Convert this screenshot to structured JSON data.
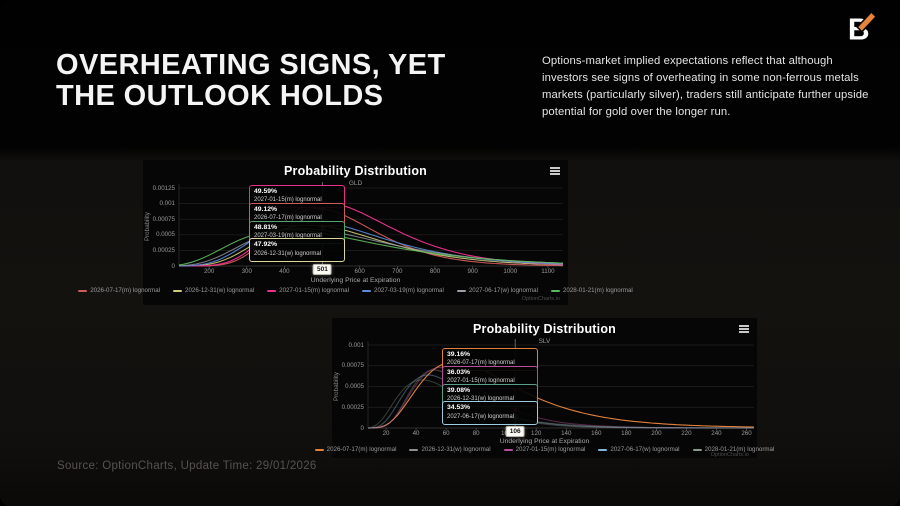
{
  "header": {
    "title_line1": "OVERHEATING SIGNS, YET",
    "title_line2": "THE OUTLOOK HOLDS",
    "description": "Options-market implied expectations reflect that although investors see signs of overheating in some non-ferrous metals markets (particularly silver), traders still anticipate further upside potential for gold over the longer run.",
    "brand_letter": "B"
  },
  "footer": {
    "source": "Source: OptionCharts, Update Time: 29/01/2026"
  },
  "colors": {
    "accent_orange": "#e8833a",
    "panel_background": "#060606",
    "grid_line": "#222222"
  },
  "chart_data": [
    {
      "type": "line",
      "title": "Probability Distribution",
      "subtitle": "GLD",
      "xlabel": "Underlying Price at Expiration",
      "ylabel": "Probability",
      "watermark": "OptionCharts.io",
      "grid": true,
      "legend_position": "bottom",
      "xlim": [
        120,
        1140
      ],
      "ylim": [
        0,
        0.00125
      ],
      "yticks": [
        0.00125,
        0.001,
        0.00075,
        0.0005,
        0.00025,
        0
      ],
      "xticks": [
        200,
        300,
        400,
        500,
        600,
        700,
        800,
        900,
        1000,
        1100
      ],
      "marker_x": 501,
      "marker_label": "501",
      "series": [
        {
          "name": "2026-07-17(m) lognormal",
          "color": "#cd5c5c",
          "peak_y": 0.00092,
          "mode_x": 488,
          "sigma": 0.27,
          "opacity": 0.95,
          "marker": true
        },
        {
          "name": "2026-12-31(w) lognormal",
          "color": "#cfca7a",
          "peak_y": 0.00066,
          "mode_x": 468,
          "sigma": 0.34,
          "opacity": 0.9,
          "marker": true
        },
        {
          "name": "2027-01-15(m) lognormal",
          "color": "#e8308a",
          "peak_y": 0.00102,
          "mode_x": 505,
          "sigma": 0.3,
          "opacity": 1,
          "marker": true
        },
        {
          "name": "2027-03-19(m) lognormal",
          "color": "#5b8bd9",
          "peak_y": 0.00073,
          "mode_x": 462,
          "sigma": 0.36,
          "opacity": 0.9,
          "marker": true
        },
        {
          "name": "2027-06-17(w) lognormal",
          "color": "#9aa0a6",
          "peak_y": 0.0006,
          "mode_x": 445,
          "sigma": 0.41,
          "opacity": 0.75,
          "marker": false
        },
        {
          "name": "2028-01-21(m) lognormal",
          "color": "#5cb85c",
          "peak_y": 0.00058,
          "mode_x": 408,
          "sigma": 0.46,
          "opacity": 0.9,
          "marker": false
        }
      ],
      "tooltips": [
        {
          "value": "49.59%",
          "label": "2027-01-15(m) lognormal",
          "color": "#e8308a"
        },
        {
          "value": "49.12%",
          "label": "2026-07-17(m) lognormal",
          "color": "#cd5c5c"
        },
        {
          "value": "48.81%",
          "label": "2027-03-19(m) lognormal",
          "color": "#56a46b"
        },
        {
          "value": "47.92%",
          "label": "2026-12-31(w) lognormal",
          "color": "#ddd8a0"
        }
      ]
    },
    {
      "type": "line",
      "title": "Probability Distribution",
      "subtitle": "SLV",
      "xlabel": "Underlying Price at Expiration",
      "ylabel": "Probability",
      "watermark": "OptionCharts.io",
      "grid": true,
      "legend_position": "bottom",
      "xlim": [
        8,
        265
      ],
      "ylim": [
        0,
        0.001
      ],
      "yticks": [
        0.001,
        0.00075,
        0.0005,
        0.00025,
        0
      ],
      "xticks": [
        20,
        40,
        60,
        80,
        100,
        120,
        140,
        160,
        180,
        200,
        220,
        240,
        260
      ],
      "marker_x": 106,
      "marker_label": "106",
      "series": [
        {
          "name": "2026-07-17(m) lognormal",
          "color": "#e0813c",
          "peak_y": 0.0008,
          "mode_x": 66,
          "sigma": 0.48,
          "opacity": 1,
          "marker": true
        },
        {
          "name": "2026-12-31(w) lognormal",
          "color": "#8f8f8f",
          "peak_y": 0.0007,
          "mode_x": 52,
          "sigma": 0.38,
          "opacity": 0.4,
          "marker": true
        },
        {
          "name": "2027-01-15(m) lognormal",
          "color": "#b54f9a",
          "peak_y": 0.00073,
          "mode_x": 56,
          "sigma": 0.41,
          "opacity": 0.45,
          "marker": true
        },
        {
          "name": "2027-06-17(w) lognormal",
          "color": "#7fb8d9",
          "peak_y": 0.00064,
          "mode_x": 48,
          "sigma": 0.44,
          "opacity": 0.4,
          "marker": true
        },
        {
          "name": "2028-01-21(m) lognormal",
          "color": "#8a9a8a",
          "peak_y": 0.00058,
          "mode_x": 44,
          "sigma": 0.5,
          "opacity": 0.35,
          "marker": false
        }
      ],
      "tooltips": [
        {
          "value": "39.16%",
          "label": "2026-07-17(m) lognormal",
          "color": "#e0813c"
        },
        {
          "value": "36.03%",
          "label": "2027-01-15(m) lognormal",
          "color": "#b54f9a"
        },
        {
          "value": "39.08%",
          "label": "2026-12-31(w) lognormal",
          "color": "#57a08b"
        },
        {
          "value": "34.53%",
          "label": "2027-06-17(w) lognormal",
          "color": "#9ecbe0"
        }
      ]
    }
  ]
}
